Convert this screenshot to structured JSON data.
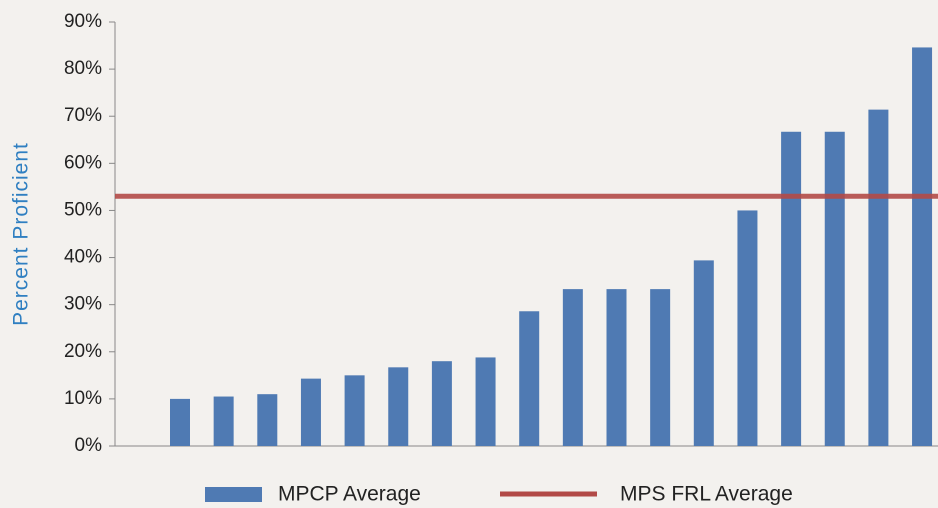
{
  "chart_data": {
    "type": "bar",
    "y_axis_label": "Percent Proficient",
    "categories": [
      null,
      null,
      null,
      null,
      null,
      null,
      null,
      null,
      null,
      null,
      null,
      null,
      null,
      null,
      null,
      null,
      null,
      null
    ],
    "series": [
      {
        "name": "MPCP Average",
        "color": "#4f7ab3",
        "values": [
          10,
          10.5,
          11,
          14.3,
          15,
          16.7,
          18,
          18.8,
          28.6,
          33.3,
          33.3,
          33.3,
          39.4,
          50,
          66.7,
          66.7,
          71.4,
          84.6
        ]
      }
    ],
    "reference_line": {
      "name": "MPS FRL Average",
      "value": 53,
      "color": "#b24a47"
    },
    "ylim": [
      0,
      90
    ],
    "yticks": [
      {
        "value": 0,
        "label": "0%"
      },
      {
        "value": 10,
        "label": "10%"
      },
      {
        "value": 20,
        "label": "20%"
      },
      {
        "value": 30,
        "label": "30%"
      },
      {
        "value": 40,
        "label": "40%"
      },
      {
        "value": 50,
        "label": "50%"
      },
      {
        "value": 60,
        "label": "60%"
      },
      {
        "value": 70,
        "label": "70%"
      },
      {
        "value": 80,
        "label": "80%"
      },
      {
        "value": 90,
        "label": "90%"
      }
    ],
    "grid": false
  }
}
